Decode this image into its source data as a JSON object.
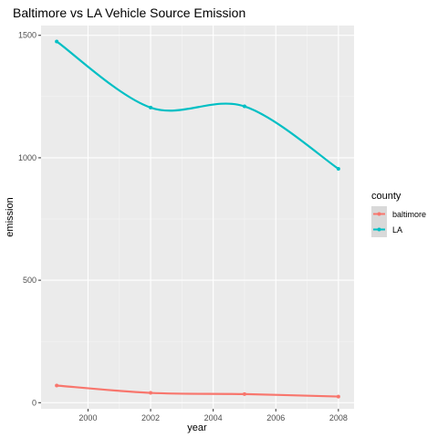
{
  "chart_data": {
    "type": "line",
    "title": "Baltimore vs LA Vehicle Source Emission",
    "xlabel": "year",
    "ylabel": "emission",
    "x": [
      1999,
      2002,
      2005,
      2008
    ],
    "xlim": [
      1998.5,
      2008.5
    ],
    "ylim": [
      -25,
      1540
    ],
    "x_ticks": [
      2000,
      2002,
      2004,
      2006,
      2008
    ],
    "y_ticks": [
      0,
      500,
      1000,
      1500
    ],
    "grid": true,
    "legend": {
      "title": "county",
      "position": "right"
    },
    "series": [
      {
        "name": "baltimore",
        "color": "#F8766D",
        "values": [
          70,
          40,
          35,
          25
        ]
      },
      {
        "name": "LA",
        "color": "#00BFC4",
        "values": [
          1475,
          1205,
          1210,
          955
        ]
      }
    ]
  }
}
